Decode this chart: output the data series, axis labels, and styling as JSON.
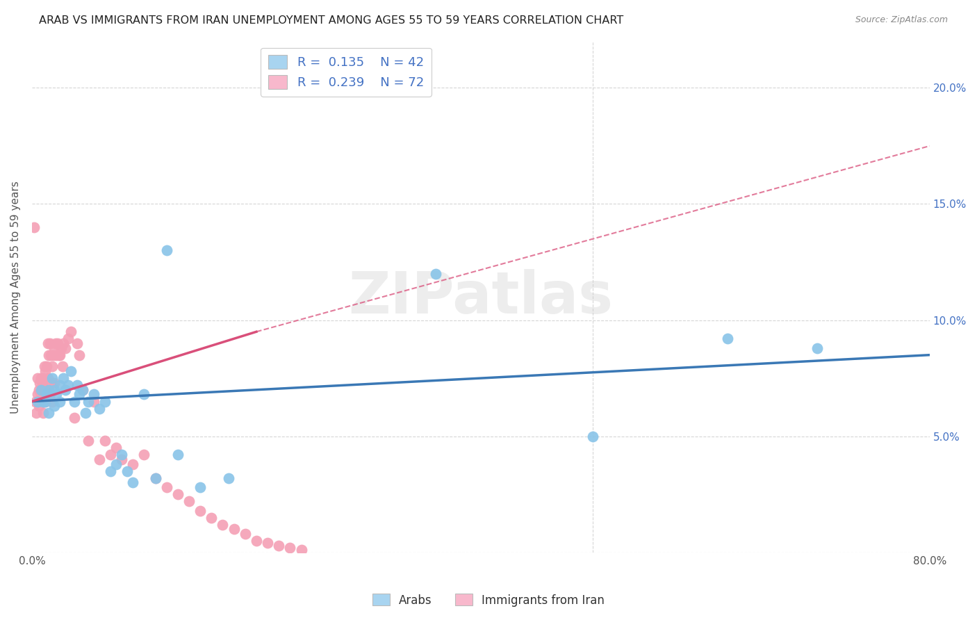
{
  "title": "ARAB VS IMMIGRANTS FROM IRAN UNEMPLOYMENT AMONG AGES 55 TO 59 YEARS CORRELATION CHART",
  "source": "Source: ZipAtlas.com",
  "ylabel": "Unemployment Among Ages 55 to 59 years",
  "xlim": [
    0,
    0.8
  ],
  "ylim": [
    0.0,
    0.22
  ],
  "xticks": [
    0.0,
    0.1,
    0.2,
    0.3,
    0.4,
    0.5,
    0.6,
    0.7,
    0.8
  ],
  "xticklabels": [
    "0.0%",
    "",
    "",
    "",
    "",
    "",
    "",
    "",
    "80.0%"
  ],
  "yticks": [
    0.0,
    0.05,
    0.1,
    0.15,
    0.2
  ],
  "yticklabels_left": [
    "",
    "",
    "",
    "",
    ""
  ],
  "yticklabels_right": [
    "",
    "5.0%",
    "10.0%",
    "15.0%",
    "20.0%"
  ],
  "arab_R": 0.135,
  "arab_N": 42,
  "iran_R": 0.239,
  "iran_N": 72,
  "arab_color": "#89c4e8",
  "arab_line_color": "#3a78b5",
  "iran_color": "#f4a0b5",
  "iran_line_color": "#d94f7a",
  "legend_patch_arab": "#a8d4f0",
  "legend_patch_iran": "#f8b8cc",
  "watermark": "ZIPatlas",
  "arab_x": [
    0.005,
    0.008,
    0.01,
    0.012,
    0.013,
    0.015,
    0.015,
    0.016,
    0.018,
    0.02,
    0.02,
    0.022,
    0.025,
    0.025,
    0.028,
    0.03,
    0.032,
    0.035,
    0.038,
    0.04,
    0.042,
    0.045,
    0.048,
    0.05,
    0.055,
    0.06,
    0.065,
    0.07,
    0.075,
    0.08,
    0.085,
    0.09,
    0.1,
    0.11,
    0.12,
    0.13,
    0.15,
    0.175,
    0.36,
    0.5,
    0.62,
    0.7
  ],
  "arab_y": [
    0.065,
    0.07,
    0.065,
    0.065,
    0.068,
    0.07,
    0.06,
    0.068,
    0.075,
    0.063,
    0.07,
    0.068,
    0.072,
    0.065,
    0.075,
    0.07,
    0.072,
    0.078,
    0.065,
    0.072,
    0.068,
    0.07,
    0.06,
    0.065,
    0.068,
    0.062,
    0.065,
    0.035,
    0.038,
    0.042,
    0.035,
    0.03,
    0.068,
    0.032,
    0.13,
    0.042,
    0.028,
    0.032,
    0.12,
    0.05,
    0.092,
    0.088
  ],
  "iran_x": [
    0.002,
    0.003,
    0.004,
    0.005,
    0.005,
    0.006,
    0.006,
    0.007,
    0.007,
    0.008,
    0.008,
    0.009,
    0.009,
    0.01,
    0.01,
    0.01,
    0.011,
    0.011,
    0.012,
    0.012,
    0.013,
    0.013,
    0.014,
    0.014,
    0.015,
    0.015,
    0.016,
    0.016,
    0.017,
    0.018,
    0.018,
    0.019,
    0.02,
    0.02,
    0.021,
    0.022,
    0.023,
    0.024,
    0.025,
    0.026,
    0.027,
    0.028,
    0.03,
    0.032,
    0.035,
    0.038,
    0.04,
    0.042,
    0.045,
    0.05,
    0.055,
    0.06,
    0.065,
    0.07,
    0.075,
    0.08,
    0.09,
    0.1,
    0.11,
    0.12,
    0.13,
    0.14,
    0.15,
    0.16,
    0.17,
    0.18,
    0.19,
    0.2,
    0.21,
    0.22,
    0.23,
    0.24
  ],
  "iran_y": [
    0.14,
    0.065,
    0.06,
    0.075,
    0.068,
    0.07,
    0.063,
    0.073,
    0.065,
    0.075,
    0.068,
    0.073,
    0.065,
    0.075,
    0.07,
    0.06,
    0.08,
    0.07,
    0.078,
    0.065,
    0.08,
    0.068,
    0.09,
    0.075,
    0.085,
    0.068,
    0.09,
    0.073,
    0.085,
    0.08,
    0.065,
    0.085,
    0.088,
    0.073,
    0.09,
    0.085,
    0.09,
    0.085,
    0.085,
    0.088,
    0.08,
    0.09,
    0.088,
    0.092,
    0.095,
    0.058,
    0.09,
    0.085,
    0.07,
    0.048,
    0.065,
    0.04,
    0.048,
    0.042,
    0.045,
    0.04,
    0.038,
    0.042,
    0.032,
    0.028,
    0.025,
    0.022,
    0.018,
    0.015,
    0.012,
    0.01,
    0.008,
    0.005,
    0.004,
    0.003,
    0.002,
    0.001
  ]
}
